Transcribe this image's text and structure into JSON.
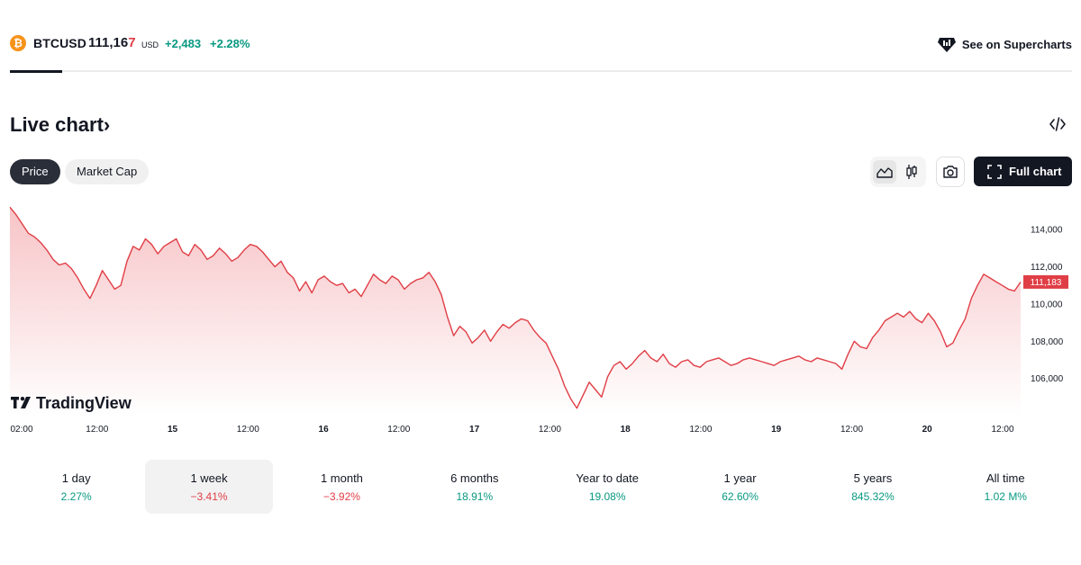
{
  "ticker": {
    "coin_glyph": "₿",
    "symbol": "BTCUSD",
    "price_main": "111,16",
    "price_last": "7",
    "currency": "USD",
    "change": "+2,483",
    "change_pct": "+2.28%"
  },
  "supercharts": {
    "label": "See on Supercharts",
    "icon": "supercharts-logo-icon"
  },
  "section": {
    "title": "Live chart›",
    "embed_icon": "code-icon"
  },
  "tabs": [
    {
      "label": "Price",
      "active": true
    },
    {
      "label": "Market Cap",
      "active": false
    }
  ],
  "toolbar": {
    "area_icon": "area-chart-icon",
    "candle_icon": "candlestick-icon",
    "screenshot_icon": "camera-icon",
    "full_chart_label": "Full chart",
    "full_chart_icon": "fullscreen-icon"
  },
  "chart_data": {
    "type": "area",
    "watermark": "TradingView",
    "x_ticks": [
      "02:00",
      "12:00",
      "15",
      "12:00",
      "16",
      "12:00",
      "17",
      "12:00",
      "18",
      "12:00",
      "19",
      "12:00",
      "20",
      "12:00"
    ],
    "x_ticks_bold": [
      false,
      false,
      true,
      false,
      true,
      false,
      true,
      false,
      true,
      false,
      true,
      false,
      true,
      false
    ],
    "y_ticks": [
      "114,000",
      "112,000",
      "110,000",
      "108,000",
      "106,000"
    ],
    "y_tick_values": [
      114000,
      112000,
      110000,
      108000,
      106000
    ],
    "ylim": [
      104000,
      115700
    ],
    "last_price_label": "111,183",
    "last_price": 111183,
    "colors": {
      "line": "#e03e46",
      "fill_top": "#f7c4c7",
      "fill_bottom": "#ffffff",
      "last_price_bg": "#e03e46"
    },
    "series": [
      {
        "x": [
          "02:00",
          "12:00",
          "15 00:00",
          "15 12:00",
          "16 00:00",
          "16 12:00",
          "17 00:00",
          "17 12:00",
          "18 00:00",
          "18 12:00",
          "19 00:00",
          "19 12:00",
          "20 00:00",
          "20 12:00"
        ],
        "values": [
          115200,
          112800,
          113300,
          112900,
          111400,
          111700,
          109000,
          104400,
          107200,
          107100,
          107200,
          107000,
          109600,
          111183
        ]
      }
    ],
    "path_values": [
      115200,
      114800,
      114300,
      113800,
      113600,
      113300,
      112900,
      112400,
      112100,
      112200,
      111900,
      111400,
      110800,
      110300,
      111000,
      111800,
      111300,
      110800,
      111000,
      112300,
      113100,
      112900,
      113500,
      113200,
      112700,
      113100,
      113300,
      113500,
      112800,
      112600,
      113200,
      112900,
      112400,
      112600,
      113000,
      112700,
      112300,
      112500,
      112900,
      113200,
      113100,
      112800,
      112400,
      112000,
      112300,
      111700,
      111400,
      110700,
      111200,
      110600,
      111300,
      111500,
      111200,
      111000,
      111100,
      110600,
      110800,
      110400,
      111000,
      111600,
      111300,
      111100,
      111500,
      111300,
      110800,
      111100,
      111300,
      111400,
      111700,
      111200,
      110500,
      109300,
      108300,
      108800,
      108500,
      107900,
      108200,
      108600,
      108000,
      108500,
      108900,
      108700,
      109000,
      109200,
      109100,
      108600,
      108200,
      107900,
      107200,
      106500,
      105600,
      104900,
      104400,
      105100,
      105800,
      105400,
      105000,
      106100,
      106700,
      106900,
      106500,
      106800,
      107200,
      107500,
      107100,
      106900,
      107300,
      106800,
      106600,
      106900,
      107000,
      106700,
      106600,
      106900,
      107000,
      107100,
      106900,
      106700,
      106800,
      107000,
      107100,
      107000,
      106900,
      106800,
      106700,
      106900,
      107000,
      107100,
      107200,
      107000,
      106900,
      107100,
      107000,
      106900,
      106800,
      106500,
      107300,
      108000,
      107700,
      107600,
      108200,
      108600,
      109100,
      109300,
      109500,
      109300,
      109600,
      109200,
      109000,
      109500,
      109100,
      108500,
      107700,
      107900,
      108600,
      109200,
      110300,
      111000,
      111600,
      111400,
      111200,
      111000,
      110800,
      110700,
      111183
    ]
  },
  "periods": [
    {
      "label": "1 day",
      "value": "2.27%",
      "dir": "pos",
      "active": false
    },
    {
      "label": "1 week",
      "value": "−3.41%",
      "dir": "neg",
      "active": true
    },
    {
      "label": "1 month",
      "value": "−3.92%",
      "dir": "neg",
      "active": false
    },
    {
      "label": "6 months",
      "value": "18.91%",
      "dir": "pos",
      "active": false
    },
    {
      "label": "Year to date",
      "value": "19.08%",
      "dir": "pos",
      "active": false
    },
    {
      "label": "1 year",
      "value": "62.60%",
      "dir": "pos",
      "active": false
    },
    {
      "label": "5 years",
      "value": "845.32%",
      "dir": "pos",
      "active": false
    },
    {
      "label": "All time",
      "value": "1.02 M%",
      "dir": "pos",
      "active": false
    }
  ]
}
